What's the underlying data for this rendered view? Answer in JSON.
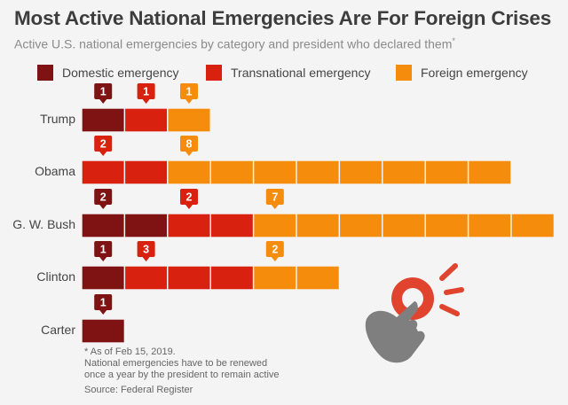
{
  "title": "Most Active National Emergencies Are For Foreign Crises",
  "subtitle": "Active U.S. national emergencies by category and president who declared them",
  "subtitle_mark": "*",
  "colors": {
    "domestic": "#7f1212",
    "transnational": "#d9210f",
    "foreign": "#f58c0c"
  },
  "chart_data": {
    "type": "bar",
    "stacked": true,
    "categories": [
      "Trump",
      "Obama",
      "G. W. Bush",
      "Clinton",
      "Carter"
    ],
    "series": [
      {
        "name": "Domestic emergency",
        "key": "domestic",
        "values": [
          1,
          0,
          2,
          1,
          1
        ]
      },
      {
        "name": "Transnational emergency",
        "key": "transnational",
        "values": [
          1,
          2,
          2,
          3,
          0
        ]
      },
      {
        "name": "Foreign emergency",
        "key": "foreign",
        "values": [
          1,
          8,
          7,
          2,
          0
        ]
      }
    ],
    "legend_position": "top",
    "grid": false
  },
  "footnotes": [
    "* As of Feb 15, 2019.",
    "National emergencies have to be renewed",
    "once a year by the president to remain active"
  ],
  "source": "Source: Federal Register",
  "icons": [
    "click-hand-icon"
  ]
}
